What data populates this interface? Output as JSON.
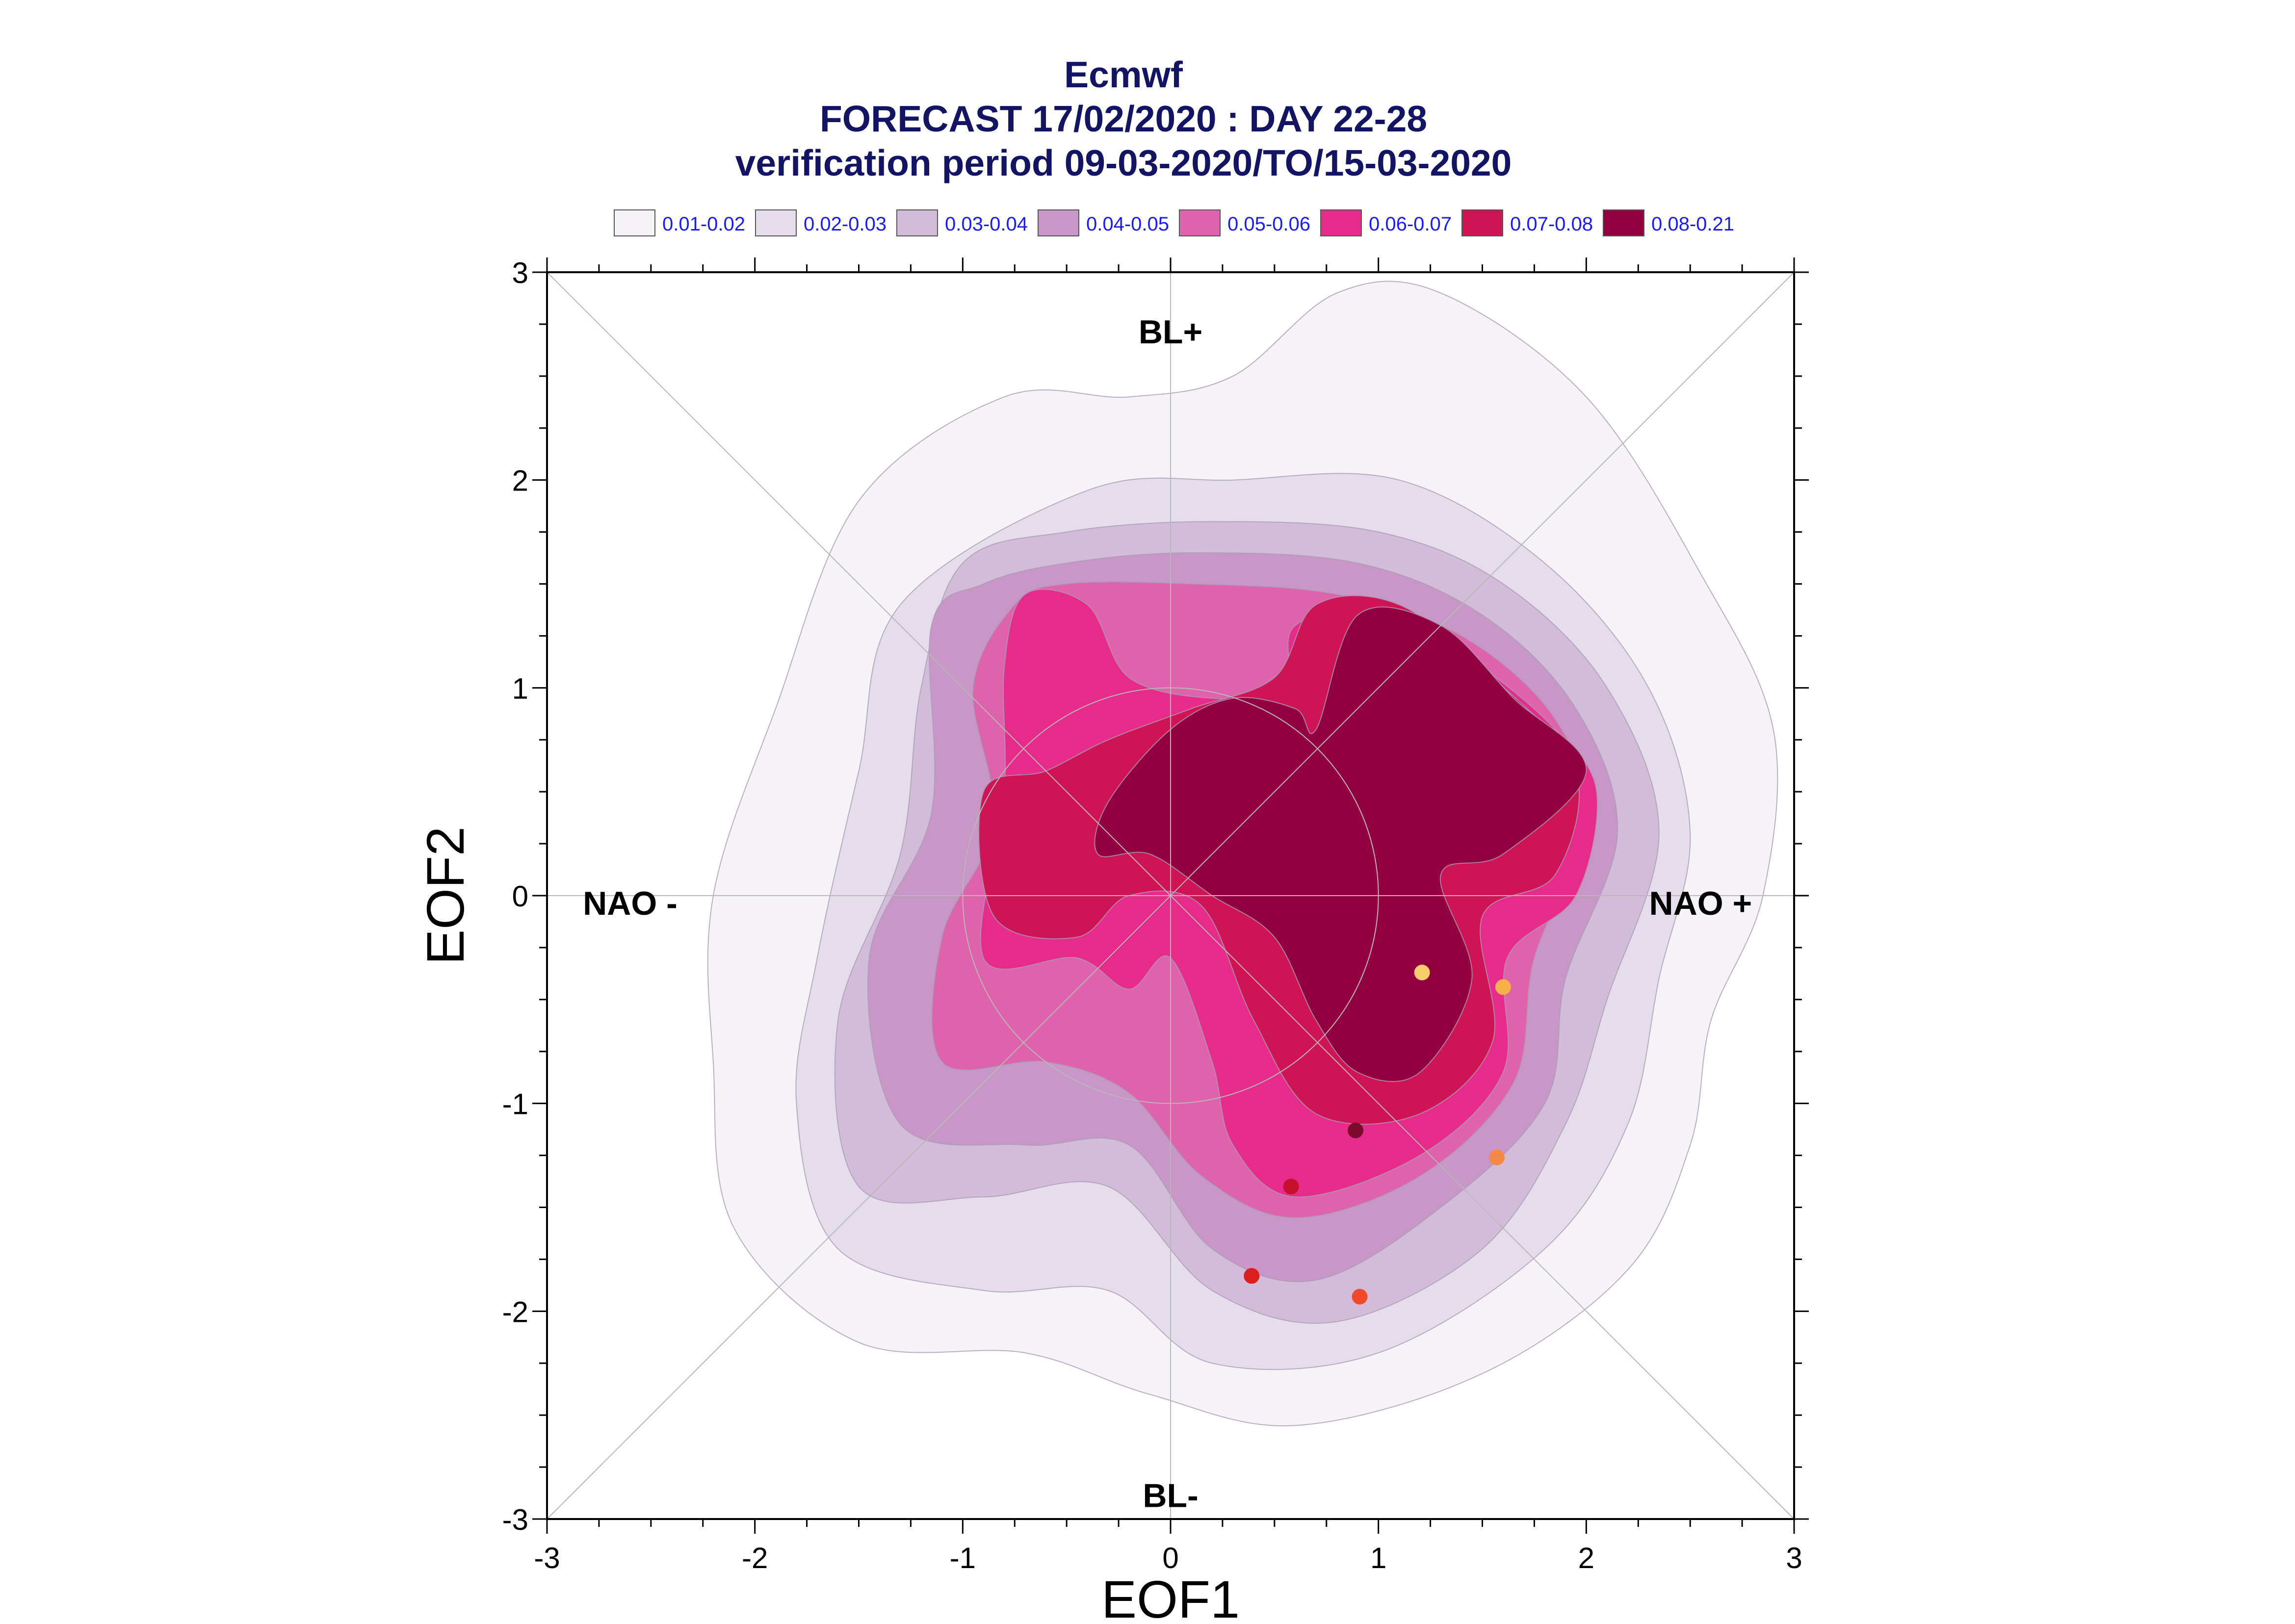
{
  "chart_data": {
    "type": "contour",
    "title_lines": [
      "Ecmwf",
      "FORECAST 17/02/2020 : DAY 22-28",
      "verification period 09-03-2020/TO/15-03-2020"
    ],
    "xlabel": "EOF1",
    "ylabel": "EOF2",
    "xlim": [
      -3,
      3
    ],
    "ylim": [
      -3,
      3
    ],
    "xticks": [
      "-3",
      "-2",
      "-1",
      "0",
      "1",
      "2",
      "3"
    ],
    "yticks": [
      "-3",
      "-2",
      "-1",
      "0",
      "1",
      "2",
      "3"
    ],
    "grid": false,
    "legend_position": "top",
    "levels": [
      {
        "label": "0.01-0.02",
        "color": "#f5f2f8"
      },
      {
        "label": "0.02-0.03",
        "color": "#e6ddec"
      },
      {
        "label": "0.03-0.04",
        "color": "#d3bcd9"
      },
      {
        "label": "0.04-0.05",
        "color": "#c996c8"
      },
      {
        "label": "0.05-0.06",
        "color": "#df62ad"
      },
      {
        "label": "0.06-0.07",
        "color": "#e72b8b"
      },
      {
        "label": "0.07-0.08",
        "color": "#cf1455"
      },
      {
        "label": "0.08-0.21",
        "color": "#920040"
      }
    ],
    "regime_labels": [
      {
        "text": "BL+",
        "x": 0,
        "y": 2.7
      },
      {
        "text": "BL-",
        "x": 0,
        "y": -2.9
      },
      {
        "text": "NAO -",
        "x": -2.6,
        "y": -0.05
      },
      {
        "text": "NAO +",
        "x": 2.55,
        "y": -0.05
      }
    ],
    "points": [
      {
        "x": 1.21,
        "y": -0.37,
        "color": "#f7ce6a"
      },
      {
        "x": 1.6,
        "y": -0.44,
        "color": "#f8b04a"
      },
      {
        "x": 0.89,
        "y": -1.13,
        "color": "#7a0a2e"
      },
      {
        "x": 1.57,
        "y": -1.26,
        "color": "#f5894a"
      },
      {
        "x": 0.58,
        "y": -1.4,
        "color": "#c70f2e"
      },
      {
        "x": 0.39,
        "y": -1.83,
        "color": "#db1e1e"
      },
      {
        "x": 0.91,
        "y": -1.93,
        "color": "#f04a2a"
      }
    ]
  }
}
